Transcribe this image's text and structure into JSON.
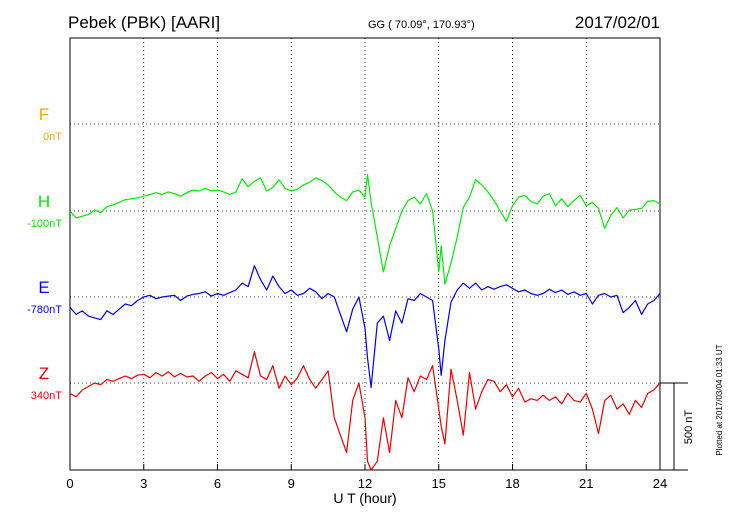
{
  "header": {
    "station": "Pebek (PBK)  [AARI]",
    "coords": "GG ( 70.09°, 170.93°)",
    "date": "2017/02/01"
  },
  "footer": {
    "xlabel": "U T (hour)",
    "scale_label": "500 nT",
    "plotted_note": "Plotted at 2017/03/04 01:33 UT"
  },
  "chart_data": {
    "type": "line",
    "x_unit": "hour UT",
    "xlim": [
      0,
      24
    ],
    "xticks": [
      0,
      3,
      6,
      9,
      12,
      15,
      18,
      21,
      24
    ],
    "grid": true,
    "scale_bar_nT": 500,
    "series": [
      {
        "name": "F",
        "baseline_label": "0nT",
        "color": "#ffa500",
        "x": [],
        "y": []
      },
      {
        "name": "H",
        "baseline_label": "-100nT",
        "color": "#00ee00",
        "x": [
          0,
          0.25,
          0.5,
          0.75,
          1,
          1.25,
          1.5,
          1.75,
          2,
          2.25,
          2.5,
          2.75,
          3,
          3.25,
          3.5,
          3.75,
          4,
          4.25,
          4.5,
          4.75,
          5,
          5.25,
          5.5,
          5.75,
          6,
          6.25,
          6.5,
          6.75,
          7,
          7.25,
          7.5,
          7.75,
          8,
          8.25,
          8.5,
          8.75,
          9,
          9.25,
          9.5,
          9.75,
          10,
          10.25,
          10.5,
          10.75,
          11,
          11.25,
          11.5,
          11.75,
          12,
          12.1,
          12.25,
          12.5,
          12.75,
          13,
          13.25,
          13.5,
          13.75,
          14,
          14.25,
          14.5,
          14.75,
          15,
          15.1,
          15.25,
          15.5,
          15.75,
          16,
          16.25,
          16.5,
          16.75,
          17,
          17.25,
          17.5,
          17.75,
          18,
          18.25,
          18.5,
          18.75,
          19,
          19.25,
          19.5,
          19.75,
          20,
          20.25,
          20.5,
          20.75,
          21,
          21.25,
          21.5,
          21.75,
          22,
          22.25,
          22.5,
          22.75,
          23,
          23.25,
          23.5,
          23.75,
          24
        ],
        "y": [
          0,
          -40,
          -30,
          -20,
          5,
          -10,
          25,
          35,
          50,
          65,
          70,
          75,
          85,
          95,
          105,
          95,
          110,
          100,
          85,
          105,
          120,
          115,
          130,
          115,
          120,
          110,
          95,
          110,
          185,
          140,
          170,
          190,
          115,
          135,
          180,
          130,
          115,
          125,
          150,
          165,
          190,
          175,
          150,
          110,
          80,
          60,
          110,
          120,
          80,
          210,
          50,
          -150,
          -350,
          -200,
          -100,
          0,
          60,
          80,
          40,
          100,
          0,
          -350,
          -200,
          -420,
          -300,
          -150,
          20,
          80,
          180,
          150,
          110,
          60,
          0,
          -60,
          30,
          80,
          90,
          55,
          40,
          85,
          100,
          30,
          70,
          25,
          60,
          90,
          30,
          50,
          15,
          -100,
          -25,
          20,
          -40,
          5,
          10,
          15,
          55,
          60,
          40
        ]
      },
      {
        "name": "E",
        "baseline_label": "-780nT",
        "color": "#0000ee",
        "x": [
          0,
          0.25,
          0.5,
          0.75,
          1,
          1.25,
          1.5,
          1.75,
          2,
          2.25,
          2.5,
          2.75,
          3,
          3.25,
          3.5,
          3.75,
          4,
          4.25,
          4.5,
          4.75,
          5,
          5.25,
          5.5,
          5.75,
          6,
          6.25,
          6.5,
          6.75,
          7,
          7.25,
          7.5,
          7.75,
          8,
          8.25,
          8.5,
          8.75,
          9,
          9.25,
          9.5,
          9.75,
          10,
          10.25,
          10.5,
          10.75,
          11,
          11.25,
          11.5,
          11.75,
          12,
          12.1,
          12.25,
          12.5,
          12.75,
          13,
          13.25,
          13.5,
          13.75,
          14,
          14.25,
          14.5,
          14.75,
          15,
          15.1,
          15.25,
          15.5,
          15.75,
          16,
          16.25,
          16.5,
          16.75,
          17,
          17.25,
          17.5,
          17.75,
          18,
          18.25,
          18.5,
          18.75,
          19,
          19.25,
          19.5,
          19.75,
          20,
          20.25,
          20.5,
          20.75,
          21,
          21.25,
          21.5,
          21.75,
          22,
          22.25,
          22.5,
          22.75,
          23,
          23.25,
          23.5,
          23.75,
          24
        ],
        "y": [
          -60,
          -100,
          -80,
          -110,
          -120,
          -130,
          -80,
          -100,
          -70,
          -40,
          -50,
          -20,
          0,
          10,
          -10,
          0,
          5,
          10,
          -20,
          5,
          15,
          20,
          30,
          5,
          20,
          10,
          25,
          40,
          80,
          60,
          180,
          100,
          40,
          120,
          60,
          20,
          40,
          10,
          20,
          50,
          30,
          -10,
          20,
          0,
          -100,
          -200,
          -70,
          0,
          -180,
          -350,
          -520,
          -150,
          -110,
          -250,
          -80,
          -150,
          -10,
          -20,
          20,
          0,
          -20,
          -300,
          -450,
          -250,
          -30,
          40,
          80,
          50,
          80,
          40,
          60,
          45,
          60,
          70,
          50,
          30,
          40,
          20,
          10,
          20,
          45,
          25,
          40,
          15,
          30,
          10,
          20,
          -40,
          10,
          20,
          0,
          10,
          -90,
          -60,
          -20,
          -100,
          -40,
          -20,
          20
        ]
      },
      {
        "name": "Z",
        "baseline_label": "340nT",
        "color": "#ee0000",
        "x": [
          0,
          0.25,
          0.5,
          0.75,
          1,
          1.25,
          1.5,
          1.75,
          2,
          2.25,
          2.5,
          2.75,
          3,
          3.25,
          3.5,
          3.75,
          4,
          4.25,
          4.5,
          4.75,
          5,
          5.25,
          5.5,
          5.75,
          6,
          6.25,
          6.5,
          6.75,
          7,
          7.25,
          7.5,
          7.75,
          8,
          8.25,
          8.5,
          8.75,
          9,
          9.25,
          9.5,
          9.75,
          10,
          10.25,
          10.5,
          10.75,
          11,
          11.25,
          11.5,
          11.75,
          12,
          12.1,
          12.25,
          12.5,
          12.75,
          13,
          13.25,
          13.5,
          13.75,
          14,
          14.25,
          14.5,
          14.75,
          15,
          15.1,
          15.25,
          15.5,
          15.75,
          16,
          16.25,
          16.5,
          16.75,
          17,
          17.25,
          17.5,
          17.75,
          18,
          18.25,
          18.5,
          18.75,
          19,
          19.25,
          19.5,
          19.75,
          20,
          20.25,
          20.5,
          20.75,
          21,
          21.25,
          21.5,
          21.75,
          22,
          22.25,
          22.5,
          22.75,
          23,
          23.25,
          23.5,
          23.75,
          24
        ],
        "y": [
          -60,
          -80,
          -40,
          -20,
          0,
          -10,
          20,
          10,
          25,
          40,
          25,
          45,
          50,
          30,
          60,
          40,
          65,
          35,
          55,
          35,
          40,
          10,
          40,
          60,
          25,
          50,
          10,
          70,
          50,
          30,
          180,
          40,
          20,
          100,
          -30,
          40,
          -10,
          30,
          100,
          20,
          -30,
          20,
          70,
          -200,
          -300,
          -400,
          -100,
          0,
          -200,
          -450,
          -900,
          -450,
          -200,
          -400,
          -100,
          -200,
          30,
          -50,
          40,
          20,
          100,
          -150,
          -250,
          -350,
          80,
          -100,
          -300,
          60,
          -150,
          -50,
          20,
          10,
          -50,
          -10,
          -80,
          -30,
          -110,
          -90,
          -100,
          -70,
          -100,
          -80,
          -120,
          -60,
          -100,
          -110,
          -60,
          -150,
          -290,
          -100,
          -70,
          -150,
          -120,
          -180,
          -100,
          -140,
          -60,
          -40,
          0
        ]
      }
    ]
  }
}
